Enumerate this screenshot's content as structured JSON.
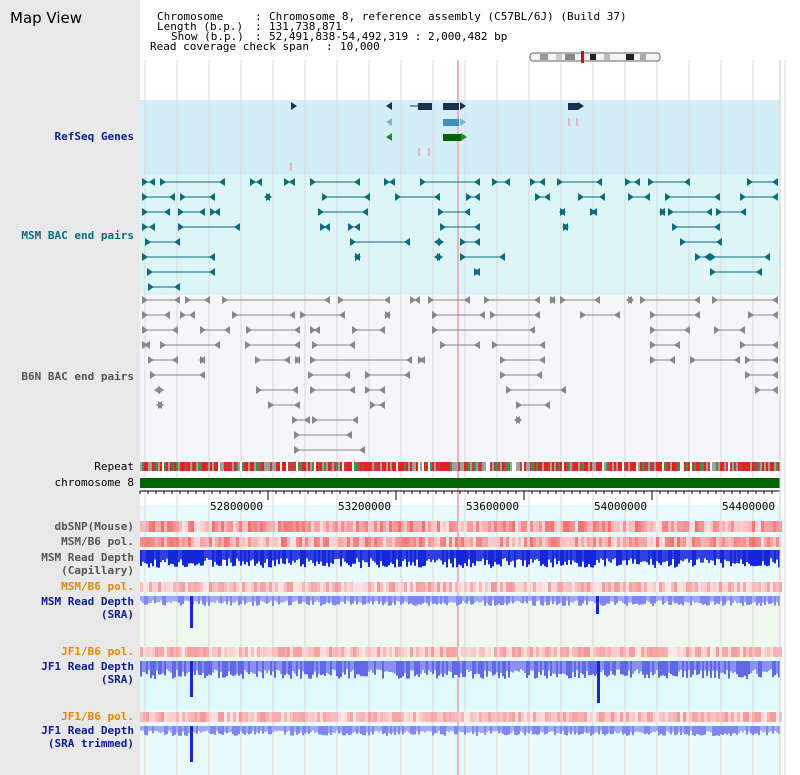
{
  "page_title": "Map View",
  "header": {
    "chromosome_label": "Chromosome",
    "chromosome_value": "Chromosome 8, reference assembly (C57BL/6J) (Build 37)",
    "length_label": "Length (b.p.)",
    "length_value": "131,738,871",
    "show_label": "Show (b.p.)",
    "show_value": "52,491,838-54,492,319 : 2,000,482 bp",
    "coverage_label": "Read coverage check span",
    "coverage_value": "10,000"
  },
  "tracks": {
    "refseq": "RefSeq Genes",
    "msm_bac": "MSM BAC end pairs",
    "b6n_bac": "B6N BAC end pairs",
    "repeat": "Repeat",
    "chromosome": "chromosome 8",
    "dbsnp": "dbSNP(Mouse)",
    "msm_b6_pol": "MSM/B6 pol.",
    "msm_depth_cap_1": "MSM Read Depth",
    "msm_depth_cap_2": "(Capillary)",
    "msm_b6_pol_2": "MSM/B6 pol.",
    "msm_depth_sra_1": "MSM Read Depth",
    "msm_depth_sra_2": "(SRA)",
    "jf1_b6_pol": "JF1/B6 pol.",
    "jf1_depth_sra_1": "JF1 Read Depth",
    "jf1_depth_sra_2": "(SRA)",
    "jf1_b6_pol_2": "JF1/B6 pol.",
    "jf1_depth_trim_1": "JF1 Read Depth",
    "jf1_depth_trim_2": "(SRA trimmed)"
  },
  "axis": {
    "ticks": [
      "52800000",
      "53200000",
      "53600000",
      "54000000",
      "54400000"
    ]
  },
  "colors": {
    "refseq_bg": "#d4eef8",
    "msm_bg": "#dcf6f8",
    "b6n_bg": "#f6f6fa",
    "chromosome_bar": "#006400",
    "depth_blue": "#1428d8",
    "pol_red": "#e83030"
  }
}
